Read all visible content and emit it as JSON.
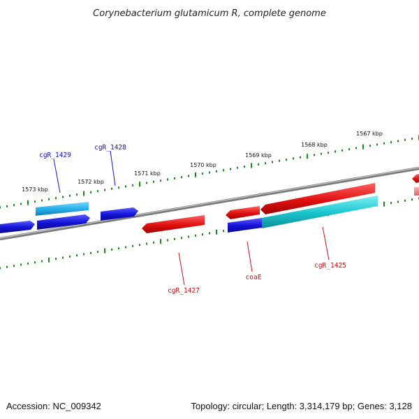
{
  "title": "Corynebacterium glutamicum R, complete genome",
  "footer": {
    "accession": "Accession: NC_009342",
    "summary": "Topology: circular; Length: 3,314,179 bp; Genes: 3,128"
  },
  "colors": {
    "backbone": "#8a8a8a",
    "ticks": "#1a8a1a",
    "forward_gene_label": "#1010c8",
    "reverse_gene_label": "#c81010",
    "blue_feature": "#1414d2",
    "cyan_feature": "#1ec8d4",
    "sky_feature": "#28b4ec",
    "red_feature": "#e01414"
  },
  "scale_labels": [
    "1567 kbp",
    "1568 kbp",
    "1569 kbp",
    "1570 kbp",
    "1571 kbp",
    "1572 kbp",
    "1573 kbp"
  ],
  "genes": {
    "forward": [
      "cgR_1429",
      "cgR_1428"
    ],
    "reverse": [
      "cgR_1427",
      "coaE",
      "cgR_1425"
    ]
  }
}
